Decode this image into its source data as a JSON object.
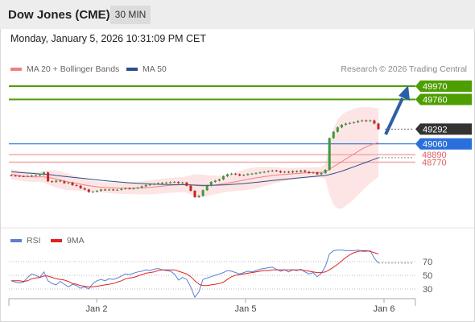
{
  "header": {
    "instrument": "Dow Jones (CME)",
    "timeframe": "30 MIN"
  },
  "datetime": "Monday, January 5, 2026 10:31:09 PM CET",
  "legend": [
    {
      "label": "MA 20 + Bollinger Bands",
      "color": "#f08080"
    },
    {
      "label": "MA 50",
      "color": "#2c4f8a"
    }
  ],
  "credit": "Research © 2026 Trading Central",
  "rsi_legend": [
    {
      "label": "RSI",
      "color": "#5b7fd6"
    },
    {
      "label": "9MA",
      "color": "#dd2222"
    }
  ],
  "colors": {
    "green": "#4d9e00",
    "blue": "#2a6fdb",
    "red": "#e06060",
    "dark": "#333333",
    "arrow": "#2b5fa8"
  },
  "chart_data": {
    "type": "candlestick",
    "x_ticks": [
      "Jan 2",
      "Jan 5",
      "Jan 6"
    ],
    "y_range": [
      48000,
      50100
    ],
    "levels": [
      {
        "label": "49970",
        "value": 49970,
        "color": "#4d9e00"
      },
      {
        "label": "49760",
        "value": 49760,
        "color": "#4d9e00"
      },
      {
        "label": "49292",
        "value": 49292,
        "color": "#333333",
        "dotted": true
      },
      {
        "label": "49060",
        "value": 49060,
        "color": "#2a6fdb"
      },
      {
        "label": "48890",
        "value": 48890,
        "color": "#e06060"
      },
      {
        "label": "48770",
        "value": 48770,
        "color": "#e06060"
      }
    ],
    "close": [
      48560,
      48555,
      48550,
      48548,
      48552,
      48560,
      48565,
      48572,
      48610,
      48470,
      48460,
      48480,
      48470,
      48440,
      48450,
      48410,
      48400,
      48360,
      48340,
      48300,
      48305,
      48320,
      48340,
      48330,
      48340,
      48330,
      48335,
      48350,
      48360,
      48350,
      48360,
      48370,
      48390,
      48410,
      48420,
      48430,
      48440,
      48445,
      48450,
      48455,
      48460,
      48440,
      48450,
      48400,
      48320,
      48220,
      48240,
      48330,
      48400,
      48460,
      48480,
      48500,
      48550,
      48580,
      48590,
      48580,
      48560,
      48570,
      48585,
      48590,
      48600,
      48610,
      48620,
      48630,
      48640,
      48630,
      48610,
      48620,
      48610,
      48630,
      48620,
      48640,
      48620,
      48600,
      48610,
      48580,
      48600,
      48650,
      49150,
      49250,
      49320,
      49360,
      49380,
      49390,
      49400,
      49420,
      49430,
      49420,
      49430,
      49380,
      49292
    ],
    "ma20": [
      48580,
      48570,
      48560,
      48550,
      48545,
      48540,
      48538,
      48540,
      48540,
      48530,
      48520,
      48505,
      48490,
      48475,
      48460,
      48448,
      48436,
      48425,
      48412,
      48400,
      48392,
      48384,
      48376,
      48372,
      48368,
      48365,
      48362,
      48361,
      48360,
      48360,
      48361,
      48363,
      48366,
      48370,
      48375,
      48381,
      48387,
      48393,
      48399,
      48405,
      48410,
      48414,
      48418,
      48418,
      48414,
      48405,
      48399,
      48398,
      48400,
      48405,
      48412,
      48420,
      48430,
      48440,
      48452,
      48464,
      48476,
      48488,
      48500,
      48512,
      48524,
      48534,
      48544,
      48553,
      48562,
      48568,
      48574,
      48578,
      48583,
      48588,
      48592,
      48598,
      48602,
      48605,
      48608,
      48610,
      48610,
      48620,
      48660,
      48700,
      48740,
      48780,
      48820,
      48860,
      48900,
      48940,
      48980,
      49010,
      49040,
      49060,
      49080
    ],
    "bb_upper": [
      48660,
      48650,
      48640,
      48630,
      48625,
      48620,
      48620,
      48622,
      48630,
      48640,
      48645,
      48640,
      48630,
      48610,
      48590,
      48570,
      48550,
      48530,
      48510,
      48490,
      48476,
      48466,
      48460,
      48456,
      48454,
      48452,
      48450,
      48450,
      48450,
      48452,
      48456,
      48462,
      48470,
      48478,
      48486,
      48494,
      48502,
      48510,
      48516,
      48522,
      48528,
      48532,
      48536,
      48548,
      48566,
      48580,
      48580,
      48574,
      48566,
      48560,
      48558,
      48560,
      48566,
      48576,
      48592,
      48610,
      48630,
      48650,
      48668,
      48682,
      48690,
      48694,
      48696,
      48696,
      48694,
      48690,
      48686,
      48682,
      48680,
      48680,
      48682,
      48684,
      48686,
      48688,
      48690,
      48690,
      48692,
      48740,
      49060,
      49300,
      49440,
      49520,
      49560,
      49590,
      49610,
      49630,
      49640,
      49640,
      49640,
      49630,
      49620
    ],
    "bb_lower": [
      48500,
      48490,
      48480,
      48470,
      48465,
      48460,
      48456,
      48458,
      48450,
      48420,
      48395,
      48370,
      48350,
      48340,
      48330,
      48326,
      48322,
      48320,
      48314,
      48310,
      48308,
      48302,
      48292,
      48288,
      48282,
      48278,
      48274,
      48272,
      48270,
      48268,
      48266,
      48264,
      48262,
      48262,
      48264,
      48268,
      48272,
      48276,
      48282,
      48288,
      48292,
      48296,
      48300,
      48288,
      48262,
      48230,
      48218,
      48222,
      48234,
      48250,
      48266,
      48280,
      48294,
      48304,
      48312,
      48318,
      48322,
      48326,
      48332,
      48342,
      48358,
      48374,
      48392,
      48410,
      48430,
      48446,
      48462,
      48474,
      48486,
      48496,
      48502,
      48512,
      48518,
      48522,
      48526,
      48530,
      48528,
      48500,
      48260,
      48100,
      48040,
      48040,
      48080,
      48130,
      48190,
      48250,
      48320,
      48380,
      48440,
      48490,
      48540
    ],
    "ma50": [
      48620,
      48615,
      48610,
      48605,
      48600,
      48595,
      48590,
      48586,
      48582,
      48576,
      48570,
      48562,
      48555,
      48548,
      48541,
      48534,
      48527,
      48520,
      48513,
      48506,
      48499,
      48492,
      48485,
      48479,
      48473,
      48467,
      48461,
      48456,
      48451,
      48446,
      48442,
      48438,
      48434,
      48431,
      48428,
      48425,
      48423,
      48421,
      48419,
      48418,
      48417,
      48416,
      48415,
      48414,
      48412,
      48410,
      48408,
      48406,
      48406,
      48407,
      48408,
      48410,
      48413,
      48416,
      48420,
      48425,
      48430,
      48435,
      48441,
      48447,
      48453,
      48460,
      48467,
      48474,
      48481,
      48488,
      48495,
      48502,
      48508,
      48514,
      48520,
      48526,
      48532,
      48538,
      48544,
      48550,
      48556,
      48562,
      48575,
      48592,
      48610,
      48630,
      48652,
      48675,
      48698,
      48722,
      48746,
      48770,
      48794,
      48818,
      48842
    ],
    "rsi": [
      42,
      40,
      39,
      40,
      47,
      52,
      50,
      47,
      55,
      42,
      38,
      36,
      41,
      37,
      33,
      37,
      35,
      31,
      33,
      30,
      38,
      42,
      44,
      42,
      45,
      44,
      46,
      49,
      52,
      51,
      53,
      55,
      56,
      58,
      57,
      59,
      60,
      58,
      57,
      56,
      52,
      43,
      47,
      44,
      33,
      18,
      26,
      44,
      46,
      48,
      50,
      52,
      54,
      57,
      56,
      54,
      52,
      54,
      56,
      55,
      57,
      59,
      60,
      61,
      62,
      59,
      56,
      58,
      55,
      58,
      57,
      59,
      55,
      52,
      54,
      48,
      53,
      63,
      81,
      86,
      87,
      87,
      86,
      86,
      86,
      87,
      85,
      85,
      86,
      75,
      68
    ],
    "rsi_ma": [
      42,
      42,
      42,
      41,
      42,
      45,
      46,
      47,
      49,
      49,
      47,
      45,
      44,
      43,
      41,
      38,
      37,
      35,
      34,
      33,
      33,
      34,
      35,
      36,
      37,
      38,
      40,
      42,
      45,
      46,
      47,
      49,
      51,
      53,
      54,
      55,
      57,
      58,
      58,
      58,
      58,
      56,
      54,
      52,
      48,
      42,
      37,
      35,
      35,
      36,
      37,
      38,
      40,
      44,
      48,
      50,
      51,
      52,
      53,
      54,
      55,
      56,
      57,
      57,
      58,
      58,
      58,
      58,
      58,
      58,
      58,
      58,
      57,
      56,
      55,
      54,
      54,
      55,
      58,
      62,
      66,
      71,
      76,
      80,
      83,
      85,
      86,
      86,
      85,
      83,
      81
    ],
    "rsi_ticks": [
      70,
      50,
      30
    ]
  }
}
